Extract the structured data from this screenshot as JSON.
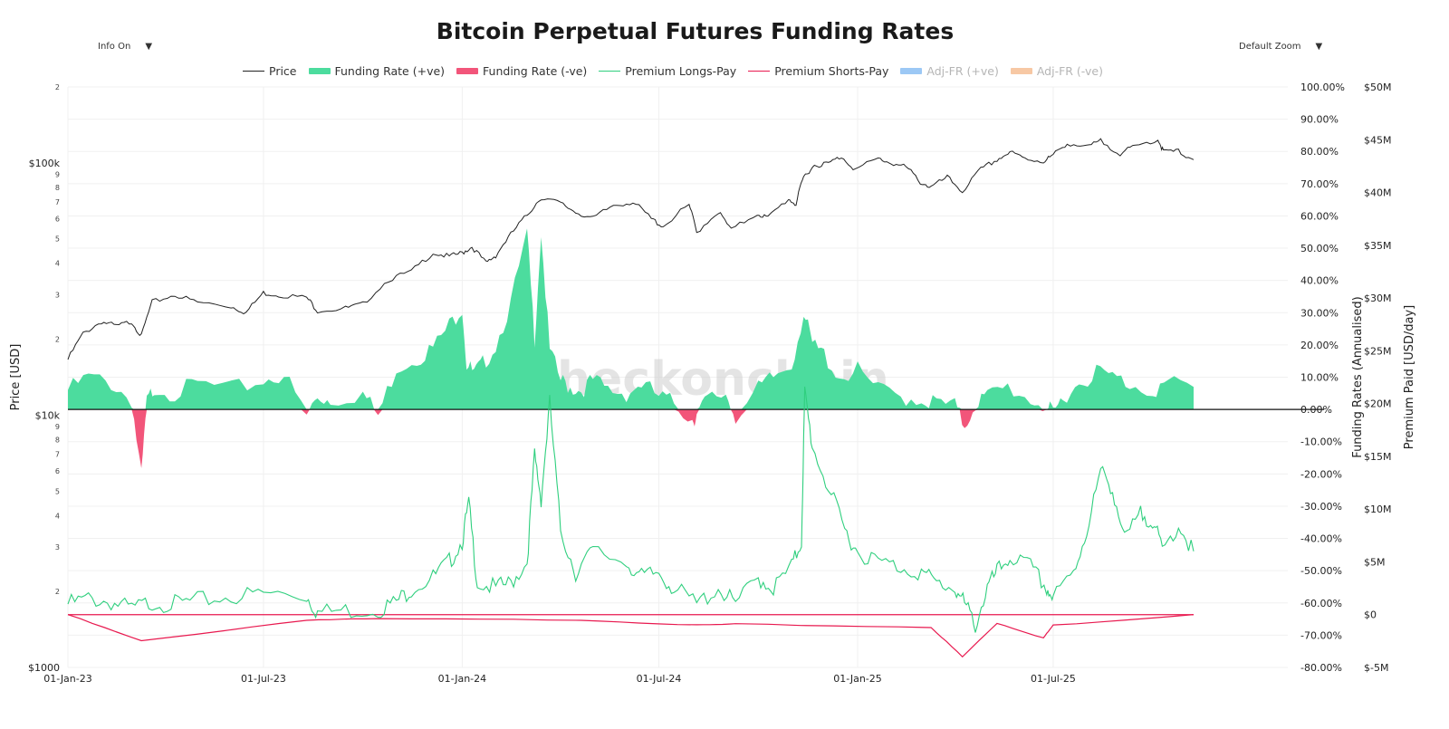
{
  "title": "Bitcoin Perpetual Futures Funding Rates",
  "controls": {
    "info": {
      "label": "Info On",
      "caret": "▼"
    },
    "zoom": {
      "label": "Default Zoom",
      "caret": "▼"
    }
  },
  "watermark": "_checkonchain",
  "chart_data": {
    "type": "line",
    "title": "Bitcoin Perpetual Futures Funding Rates",
    "x_tick_labels": [
      "01-Jan-23",
      "01-Jul-23",
      "01-Jan-24",
      "01-Jul-24",
      "01-Jan-25",
      "01-Jul-25"
    ],
    "x_range": [
      "2023-01-01",
      "2025-11-08"
    ],
    "axes": {
      "price": {
        "label": "Price [USD]",
        "scale": "log",
        "range": [
          1000,
          200000
        ],
        "major_ticks": [
          "$1000",
          "$10k",
          "$100k"
        ],
        "minor_ticks": [
          "2",
          "3",
          "4",
          "5",
          "6",
          "7",
          "8",
          "9",
          "2",
          "3",
          "4",
          "5",
          "6",
          "7",
          "8",
          "9",
          "2"
        ]
      },
      "funding": {
        "label": "Funding Rates (Annualised)",
        "range": [
          -80,
          100
        ],
        "ticks": [
          "100.00%",
          "90.00%",
          "80.00%",
          "70.00%",
          "60.00%",
          "50.00%",
          "40.00%",
          "30.00%",
          "20.00%",
          "10.00%",
          "0.00%",
          "-10.00%",
          "-20.00%",
          "-30.00%",
          "-40.00%",
          "-50.00%",
          "-60.00%",
          "-70.00%",
          "-80.00%"
        ]
      },
      "premium": {
        "label": "Premium Paid [USD/day]",
        "range": [
          -5000000,
          50000000
        ],
        "ticks": [
          "$50M",
          "$45M",
          "$40M",
          "$35M",
          "$30M",
          "$25M",
          "$20M",
          "$15M",
          "$10M",
          "$5M",
          "$0",
          "$-5M"
        ]
      }
    },
    "legend": [
      {
        "name": "Price",
        "color": "#222222",
        "style": "line",
        "visible": true
      },
      {
        "name": "Funding Rate (+ve)",
        "color": "#4cdc9e",
        "style": "bar",
        "visible": true
      },
      {
        "name": "Funding Rate (-ve)",
        "color": "#f2557a",
        "style": "bar",
        "visible": true
      },
      {
        "name": "Premium Longs-Pay",
        "color": "#2fcf7e",
        "style": "line",
        "visible": true
      },
      {
        "name": "Premium Shorts-Pay",
        "color": "#e8194f",
        "style": "line",
        "visible": true
      },
      {
        "name": "Adj-FR (+ve)",
        "color": "#9cc8f5",
        "style": "bar",
        "visible": false
      },
      {
        "name": "Adj-FR (-ve)",
        "color": "#f7c8a4",
        "style": "bar",
        "visible": false
      }
    ],
    "series": [
      {
        "name": "Price",
        "axis": "price",
        "x": [
          "2023-01-01",
          "2023-01-15",
          "2023-02-01",
          "2023-02-15",
          "2023-03-01",
          "2023-03-10",
          "2023-03-20",
          "2023-04-10",
          "2023-05-01",
          "2023-06-01",
          "2023-06-15",
          "2023-07-01",
          "2023-07-15",
          "2023-08-10",
          "2023-08-20",
          "2023-09-15",
          "2023-10-01",
          "2023-10-25",
          "2023-11-15",
          "2023-12-05",
          "2023-12-20",
          "2024-01-01",
          "2024-01-10",
          "2024-01-23",
          "2024-02-01",
          "2024-02-15",
          "2024-03-01",
          "2024-03-14",
          "2024-04-01",
          "2024-04-15",
          "2024-05-01",
          "2024-05-20",
          "2024-06-07",
          "2024-06-24",
          "2024-07-05",
          "2024-07-29",
          "2024-08-05",
          "2024-08-25",
          "2024-09-06",
          "2024-09-30",
          "2024-10-10",
          "2024-10-29",
          "2024-11-05",
          "2024-11-12",
          "2024-11-22",
          "2024-12-05",
          "2024-12-17",
          "2024-12-30",
          "2025-01-20",
          "2025-02-01",
          "2025-02-15",
          "2025-02-28",
          "2025-03-10",
          "2025-03-25",
          "2025-04-08",
          "2025-04-25",
          "2025-05-10",
          "2025-05-22",
          "2025-06-05",
          "2025-06-22",
          "2025-07-01",
          "2025-07-14",
          "2025-08-01",
          "2025-08-14",
          "2025-09-01",
          "2025-09-15",
          "2025-10-06",
          "2025-10-11",
          "2025-10-25",
          "2025-11-08"
        ],
        "values": [
          16600,
          21000,
          23500,
          22500,
          23500,
          20500,
          28000,
          30000,
          28000,
          27000,
          25500,
          30500,
          30000,
          29200,
          26000,
          26500,
          27500,
          34500,
          37000,
          44000,
          42500,
          44000,
          46500,
          40000,
          43000,
          52000,
          62000,
          73000,
          69000,
          64000,
          60000,
          68000,
          70000,
          60000,
          56000,
          68000,
          53000,
          64000,
          54000,
          63000,
          60500,
          72000,
          68500,
          88000,
          98000,
          99500,
          106000,
          94000,
          104000,
          100000,
          96000,
          84000,
          80000,
          87500,
          77000,
          94000,
          103000,
          110000,
          104000,
          101500,
          107000,
          120000,
          115000,
          122000,
          109000,
          116000,
          124000,
          111000,
          111000,
          103000
        ]
      },
      {
        "name": "Funding Rate",
        "axis": "funding",
        "unit": "% annualised",
        "x": [
          "2023-01-01",
          "2023-01-20",
          "2023-02-10",
          "2023-03-01",
          "2023-03-10",
          "2023-03-15",
          "2023-03-22",
          "2023-04-10",
          "2023-05-01",
          "2023-06-01",
          "2023-07-01",
          "2023-07-20",
          "2023-08-10",
          "2023-08-20",
          "2023-09-01",
          "2023-10-01",
          "2023-10-15",
          "2023-11-01",
          "2023-11-20",
          "2023-12-05",
          "2023-12-20",
          "2024-01-01",
          "2024-01-05",
          "2024-01-12",
          "2024-01-20",
          "2024-02-01",
          "2024-02-15",
          "2024-03-01",
          "2024-03-08",
          "2024-03-14",
          "2024-03-22",
          "2024-04-01",
          "2024-04-10",
          "2024-04-20",
          "2024-05-01",
          "2024-05-15",
          "2024-06-01",
          "2024-06-15",
          "2024-07-01",
          "2024-07-15",
          "2024-08-01",
          "2024-08-05",
          "2024-08-15",
          "2024-09-01",
          "2024-09-10",
          "2024-10-01",
          "2024-10-15",
          "2024-11-01",
          "2024-11-12",
          "2024-11-20",
          "2024-12-01",
          "2024-12-15",
          "2025-01-01",
          "2025-01-20",
          "2025-02-10",
          "2025-03-01",
          "2025-03-15",
          "2025-04-01",
          "2025-04-10",
          "2025-04-20",
          "2025-05-01",
          "2025-05-20",
          "2025-06-10",
          "2025-06-25",
          "2025-07-01",
          "2025-07-10",
          "2025-07-25",
          "2025-08-10",
          "2025-08-25",
          "2025-09-10",
          "2025-10-01",
          "2025-10-15",
          "2025-11-08"
        ],
        "values": [
          6,
          10,
          8,
          3,
          -21,
          2,
          7,
          5,
          8,
          6,
          9,
          11,
          -2,
          4,
          3,
          5,
          -2,
          13,
          16,
          19,
          26,
          32,
          14,
          11,
          14,
          20,
          33,
          54,
          22,
          55,
          18,
          9,
          7,
          6,
          9,
          6,
          5,
          8,
          4,
          2,
          -3,
          -2,
          3,
          5,
          -2,
          6,
          10,
          14,
          30,
          20,
          17,
          10,
          12,
          6,
          4,
          3,
          2,
          1,
          -5,
          2,
          4,
          7,
          3,
          1,
          -2,
          4,
          8,
          12,
          10,
          8,
          6,
          8,
          7
        ]
      },
      {
        "name": "Premium Longs-Pay",
        "axis": "premium",
        "unit": "USD/day",
        "x": [
          "2023-01-01",
          "2023-01-20",
          "2023-02-10",
          "2023-03-01",
          "2023-03-20",
          "2023-04-10",
          "2023-05-01",
          "2023-06-01",
          "2023-07-01",
          "2023-08-10",
          "2023-08-20",
          "2023-09-15",
          "2023-10-15",
          "2023-11-01",
          "2023-11-15",
          "2023-12-05",
          "2023-12-20",
          "2024-01-01",
          "2024-01-07",
          "2024-01-15",
          "2024-02-01",
          "2024-02-15",
          "2024-03-01",
          "2024-03-08",
          "2024-03-14",
          "2024-03-22",
          "2024-04-01",
          "2024-04-15",
          "2024-05-01",
          "2024-06-01",
          "2024-06-15",
          "2024-07-01",
          "2024-07-15",
          "2024-08-05",
          "2024-08-25",
          "2024-09-10",
          "2024-10-01",
          "2024-10-15",
          "2024-11-01",
          "2024-11-10",
          "2024-11-13",
          "2024-11-20",
          "2024-12-05",
          "2024-12-20",
          "2025-01-01",
          "2025-01-20",
          "2025-02-10",
          "2025-03-01",
          "2025-03-15",
          "2025-04-01",
          "2025-04-10",
          "2025-04-20",
          "2025-05-01",
          "2025-05-10",
          "2025-05-22",
          "2025-06-10",
          "2025-06-25",
          "2025-07-01",
          "2025-07-20",
          "2025-08-01",
          "2025-08-14",
          "2025-08-25",
          "2025-09-05",
          "2025-09-20",
          "2025-10-01",
          "2025-10-10",
          "2025-10-25",
          "2025-11-08"
        ],
        "values": [
          1000000,
          1500000,
          1200000,
          500000,
          1200000,
          1000000,
          1300000,
          1700000,
          2000000,
          1800000,
          200000,
          400000,
          500000,
          1200000,
          2500000,
          3500000,
          5000000,
          7000000,
          10500000,
          3000000,
          2500000,
          3000000,
          5000000,
          15000000,
          11000000,
          20000000,
          8000000,
          4000000,
          6000000,
          5000000,
          3500000,
          4000000,
          2500000,
          1000000,
          2500000,
          1000000,
          3500000,
          2500000,
          4500000,
          7000000,
          21000000,
          16000000,
          12000000,
          8000000,
          6000000,
          5000000,
          4500000,
          4000000,
          3000000,
          2500000,
          1000000,
          -1000000,
          2500000,
          4000000,
          5500000,
          4500000,
          2500000,
          1500000,
          4000000,
          8000000,
          13500000,
          12000000,
          7000000,
          9500000,
          9000000,
          6000000,
          8500000,
          6000000
        ]
      },
      {
        "name": "Premium Shorts-Pay",
        "axis": "premium",
        "unit": "USD/day",
        "x": [
          "2023-01-01",
          "2023-03-10",
          "2023-08-10",
          "2023-10-15",
          "2024-04-20",
          "2024-08-05",
          "2024-09-10",
          "2025-03-10",
          "2025-04-08",
          "2025-05-10",
          "2025-06-22",
          "2025-07-01",
          "2025-11-08"
        ],
        "values": [
          0,
          -2500000,
          -500000,
          -400000,
          -500000,
          -1000000,
          -900000,
          -1200000,
          -4000000,
          -800000,
          -2200000,
          -1000000,
          0
        ]
      }
    ]
  }
}
